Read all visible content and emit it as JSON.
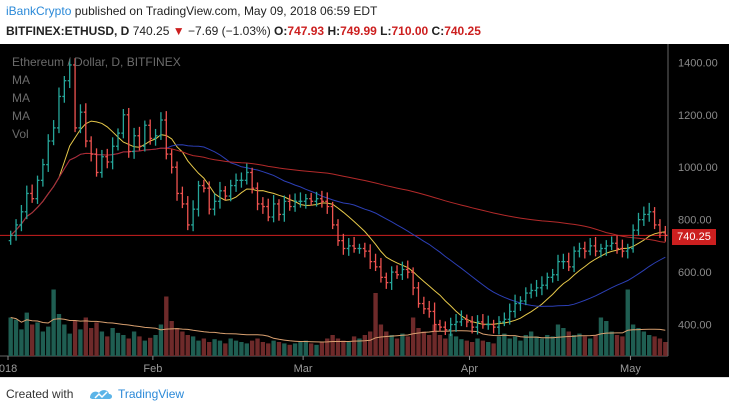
{
  "header": {
    "user": "iBankCrypto",
    "published_text": "published on TradingView.com, May 09, 2018 06:59 EDT",
    "symbol": "BITFINEX:ETHUSD, D",
    "last": "740.25",
    "change_arrow": "▼",
    "change": "−7.69 (−1.03%)",
    "open_label": "O:",
    "open": "747.93",
    "high_label": "H:",
    "high": "749.99",
    "low_label": "L:",
    "low": "710.00",
    "close_label": "C:",
    "close": "740.25"
  },
  "chart": {
    "title": "Ethereum / Dollar, D, BITFINEX",
    "indicators": [
      "MA",
      "MA",
      "MA",
      "Vol"
    ],
    "price_tag": "740.25",
    "colors": {
      "up": "#26a69a",
      "down": "#ef5350",
      "ma_fast": "#e6c84a",
      "ma_mid": "#2c3fb5",
      "ma_slow": "#b32a2a",
      "vol_ma": "#d9a070"
    }
  },
  "chart_data": {
    "type": "candlestick",
    "title": "Ethereum / Dollar, D, BITFINEX",
    "y_ticks": [
      "1400.00",
      "1200.00",
      "1000.00",
      "800.00",
      "600.00",
      "400.00"
    ],
    "y_tick_values": [
      1400,
      1200,
      1000,
      800,
      600,
      400
    ],
    "ylim": [
      280,
      1470
    ],
    "x_ticks": [
      "018",
      "Feb",
      "Mar",
      "Apr",
      "May"
    ],
    "x_tick_days": [
      0,
      27,
      55,
      86,
      116
    ],
    "days": 123,
    "close": [
      740,
      780,
      830,
      900,
      880,
      950,
      1010,
      1100,
      1150,
      1270,
      1330,
      1390,
      1150,
      1210,
      1100,
      1050,
      980,
      1040,
      1020,
      1080,
      1130,
      1200,
      1060,
      1120,
      1080,
      1160,
      1110,
      1120,
      1180,
      1050,
      1000,
      900,
      860,
      780,
      840,
      930,
      920,
      840,
      870,
      910,
      890,
      930,
      950,
      950,
      980,
      920,
      860,
      850,
      810,
      860,
      820,
      870,
      850,
      870,
      870,
      880,
      870,
      880,
      870,
      850,
      780,
      720,
      690,
      700,
      690,
      690,
      680,
      640,
      620,
      580,
      560,
      600,
      590,
      610,
      600,
      540,
      480,
      460,
      450,
      400,
      390,
      380,
      400,
      410,
      420,
      410,
      390,
      410,
      400,
      400,
      390,
      410,
      420,
      450,
      480,
      490,
      520,
      530,
      540,
      550,
      580,
      590,
      640,
      640,
      620,
      680,
      690,
      680,
      700,
      680,
      690,
      700,
      710,
      690,
      680,
      690,
      760,
      800,
      820,
      830,
      780,
      750,
      740
    ],
    "volume": [
      0.55,
      0.52,
      0.38,
      0.62,
      0.45,
      0.48,
      0.35,
      0.42,
      0.95,
      0.6,
      0.45,
      0.32,
      0.5,
      0.38,
      0.55,
      0.4,
      0.48,
      0.35,
      0.28,
      0.4,
      0.33,
      0.3,
      0.25,
      0.35,
      0.28,
      0.22,
      0.26,
      0.3,
      0.45,
      0.85,
      0.5,
      0.4,
      0.35,
      0.3,
      0.28,
      0.22,
      0.25,
      0.2,
      0.24,
      0.22,
      0.18,
      0.25,
      0.22,
      0.2,
      0.18,
      0.22,
      0.25,
      0.2,
      0.18,
      0.22,
      0.2,
      0.18,
      0.16,
      0.18,
      0.2,
      0.22,
      0.18,
      0.16,
      0.2,
      0.25,
      0.3,
      0.25,
      0.22,
      0.2,
      0.28,
      0.25,
      0.3,
      0.35,
      0.9,
      0.45,
      0.35,
      0.3,
      0.25,
      0.32,
      0.28,
      0.55,
      0.4,
      0.35,
      0.3,
      0.45,
      0.3,
      0.25,
      0.32,
      0.28,
      0.24,
      0.22,
      0.2,
      0.25,
      0.22,
      0.2,
      0.18,
      0.28,
      0.32,
      0.25,
      0.28,
      0.22,
      0.3,
      0.35,
      0.28,
      0.25,
      0.3,
      0.28,
      0.45,
      0.4,
      0.35,
      0.3,
      0.32,
      0.28,
      0.25,
      0.3,
      0.55,
      0.5,
      0.35,
      0.3,
      0.28,
      0.95,
      0.45,
      0.4,
      0.35,
      0.3,
      0.28,
      0.25,
      0.2
    ]
  },
  "footer": {
    "created_with": "Created with",
    "brand": "TradingView"
  }
}
